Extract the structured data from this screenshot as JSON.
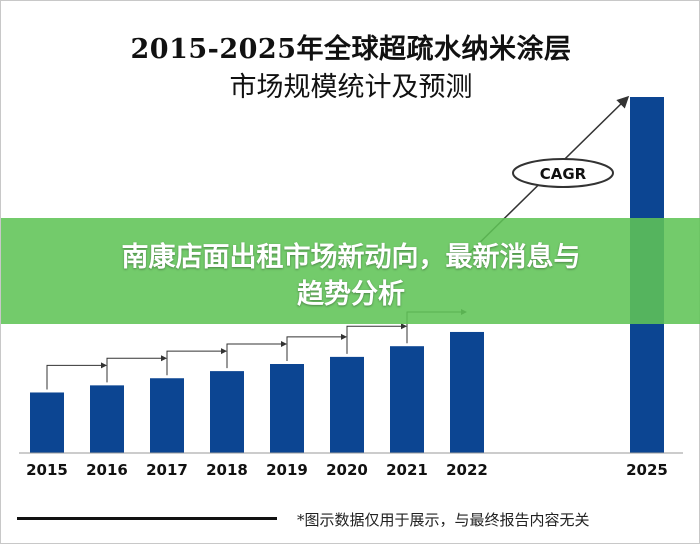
{
  "title_line1": "2015-2025年全球超疏水纳米涂层",
  "title_line2": "市场规模统计及预测",
  "banner": {
    "line1": "南康店面出租市场新动向，最新消息与",
    "line2": "趋势分析"
  },
  "cagr_label": "CAGR",
  "footnote": "*图示数据仅用于展示，与最终报告内容无关",
  "colors": {
    "bar": "#0c4592",
    "banner": "#60c456",
    "connector": "#333333"
  },
  "chart_data": {
    "type": "bar",
    "title": "2015-2025年全球超疏水纳米涂层市场规模统计及预测",
    "categories": [
      "2015",
      "2016",
      "2017",
      "2018",
      "2019",
      "2020",
      "2021",
      "2022",
      "2025"
    ],
    "values": [
      17,
      19,
      21,
      23,
      25,
      27,
      30,
      34,
      100
    ],
    "ylim": [
      0,
      100
    ],
    "grid": false,
    "xlabel": "",
    "ylabel": ""
  }
}
